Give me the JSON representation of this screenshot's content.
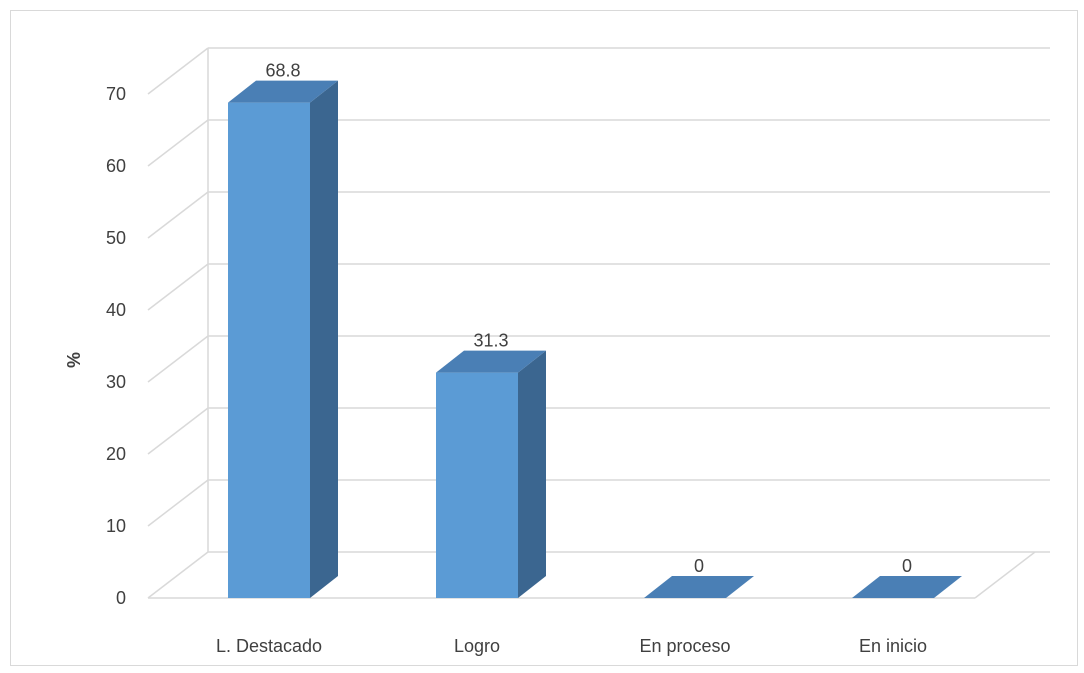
{
  "chart_data": {
    "type": "bar",
    "style": "3d-column",
    "categories": [
      "L. Destacado",
      "Logro",
      "En proceso",
      "En inicio"
    ],
    "values": [
      68.8,
      31.3,
      0,
      0
    ],
    "data_labels": [
      "68.8",
      "31.3",
      "0",
      "0"
    ],
    "ylabel": "%",
    "ylim": [
      0,
      70
    ],
    "yticks": [
      0,
      10,
      20,
      30,
      40,
      50,
      60,
      70
    ],
    "grid": true,
    "legend": "none"
  },
  "colors": {
    "bar_front": "#5b9bd5",
    "bar_side": "#3b6690",
    "bar_top": "#4a7fb5",
    "grid": "#d9d9d9",
    "text": "#404040"
  }
}
